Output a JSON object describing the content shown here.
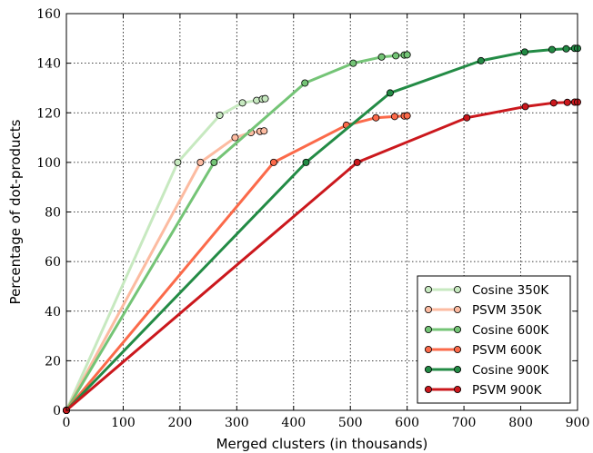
{
  "chart_data": {
    "type": "line",
    "xlabel": "Merged clusters (in thousands)",
    "ylabel": "Percentage of dot-products",
    "xlim": [
      0,
      900
    ],
    "ylim": [
      0,
      160
    ],
    "xticks": [
      "0",
      "100",
      "200",
      "300",
      "400",
      "500",
      "600",
      "700",
      "800",
      "900"
    ],
    "yticks": [
      "0",
      "20",
      "40",
      "60",
      "80",
      "100",
      "120",
      "140",
      "160"
    ],
    "grid": true,
    "legend_position": "bottom-right",
    "series": [
      {
        "name": "Cosine 350K",
        "color": "#c7e9c0",
        "x": [
          0,
          196,
          270,
          310,
          335,
          345,
          350
        ],
        "y": [
          0,
          100,
          119,
          124,
          125,
          125.5,
          125.7
        ]
      },
      {
        "name": "PSVM 350K",
        "color": "#fcbba1",
        "x": [
          0,
          236,
          297,
          325,
          341,
          348
        ],
        "y": [
          0,
          100,
          110,
          112,
          112.5,
          112.7
        ]
      },
      {
        "name": "Cosine 600K",
        "color": "#74c476",
        "x": [
          0,
          260,
          420,
          505,
          555,
          580,
          595,
          600
        ],
        "y": [
          0,
          100,
          132,
          140,
          142.5,
          143,
          143.3,
          143.4
        ]
      },
      {
        "name": "PSVM 600K",
        "color": "#fb6a4a",
        "x": [
          0,
          365,
          493,
          545,
          578,
          595,
          600
        ],
        "y": [
          0,
          100,
          115,
          118,
          118.5,
          118.7,
          118.8
        ]
      },
      {
        "name": "Cosine 900K",
        "color": "#238b45",
        "x": [
          0,
          422,
          570,
          730,
          807,
          855,
          880,
          895,
          900
        ],
        "y": [
          0,
          100,
          128,
          141,
          144.5,
          145.5,
          145.8,
          146,
          146
        ]
      },
      {
        "name": "PSVM 900K",
        "color": "#cb181d",
        "x": [
          0,
          512,
          705,
          808,
          858,
          882,
          895,
          900
        ],
        "y": [
          0,
          100,
          118,
          122.5,
          124,
          124.2,
          124.3,
          124.3
        ]
      }
    ]
  }
}
